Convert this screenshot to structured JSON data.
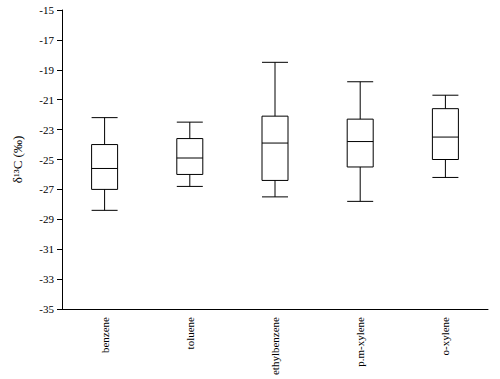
{
  "chart_data": {
    "type": "boxplot",
    "categories": [
      "benzene",
      "toluene",
      "ethylbenzene",
      "p.m-xylene",
      "o-xylene"
    ],
    "values": [
      [
        -28.4,
        -27.0,
        -25.6,
        -24.0,
        -22.2
      ],
      [
        -26.8,
        -26.0,
        -24.9,
        -23.6,
        -22.5
      ],
      [
        -27.5,
        -26.4,
        -23.9,
        -22.1,
        -18.5
      ],
      [
        -27.8,
        -25.5,
        -23.8,
        -22.3,
        -19.8
      ],
      [
        -26.2,
        -25.0,
        -23.5,
        -21.6,
        -20.7
      ]
    ],
    "color": "#000000",
    "ylabel": "δ¹³C (‰)",
    "ylim": [
      -35,
      -15
    ],
    "yticks": [
      -35,
      -33,
      -31,
      -29,
      -27,
      -25,
      -23,
      -21,
      -19,
      -17,
      -15
    ],
    "grid": false
  }
}
